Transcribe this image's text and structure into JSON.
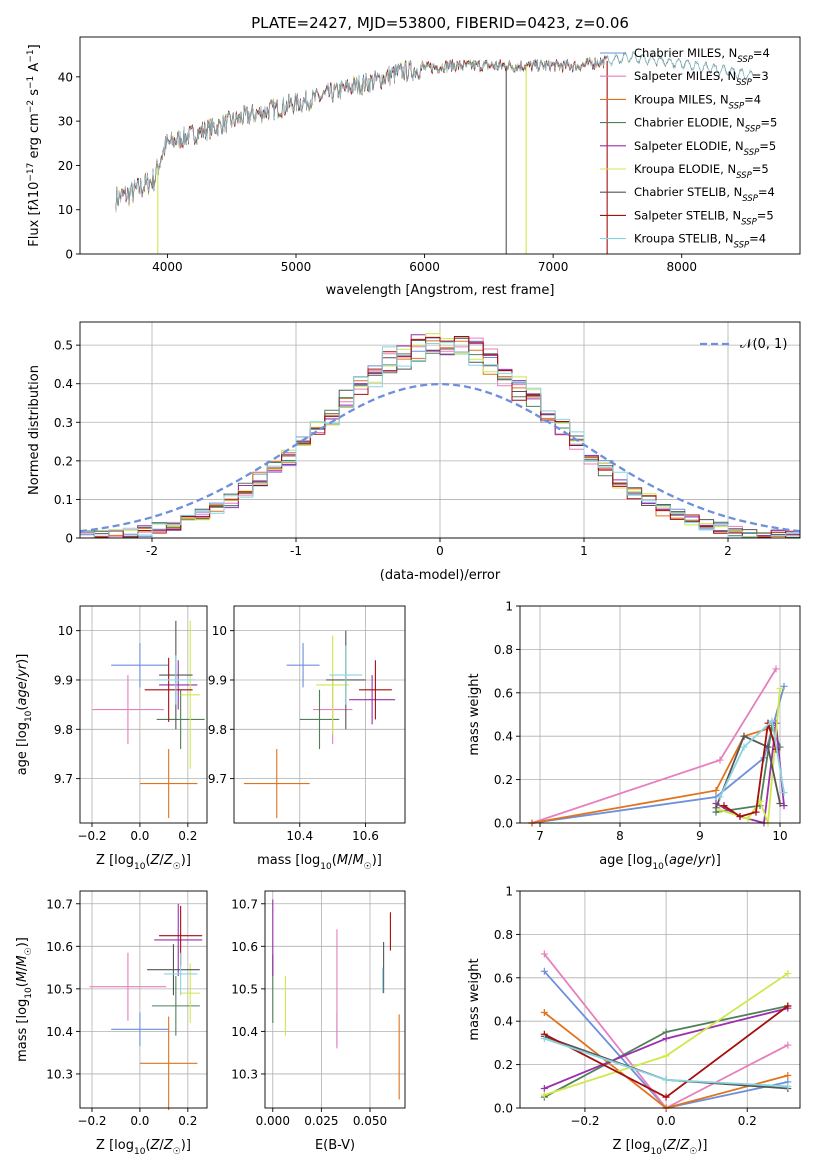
{
  "figure": {
    "title": "PLATE=2427, MJD=53800, FIBERID=0423, z=0.06"
  },
  "chart_data": [
    {
      "id": "spectrum",
      "type": "line",
      "xlabel": "wavelength [Angstrom, rest frame]",
      "ylabel_html": "Flux [f<tspan font-style='italic'>λ</tspan>10<tspan baseline-shift='super' font-size='9'>−17</tspan> erg cm<tspan baseline-shift='super' font-size='9'>−2</tspan> s<tspan baseline-shift='super' font-size='9'>−1</tspan> A<tspan baseline-shift='super' font-size='9'>−1</tspan>]",
      "xlim": [
        3320,
        8920
      ],
      "ylim": [
        0,
        49
      ],
      "xticks": [
        4000,
        5000,
        6000,
        7000,
        8000
      ],
      "yticks": [
        0,
        10,
        20,
        30,
        40
      ],
      "grid": false,
      "legend": "right",
      "series": [
        {
          "name": "Chabrier MILES, N_SSP=4",
          "color": "#6d8fdc"
        },
        {
          "name": "Salpeter MILES, N_SSP=3",
          "color": "#e77fbd"
        },
        {
          "name": "Kroupa MILES, N_SSP=4",
          "color": "#e0731c"
        },
        {
          "name": "Chabrier ELODIE, N_SSP=5",
          "color": "#527f5a"
        },
        {
          "name": "Salpeter ELODIE, N_SSP=5",
          "color": "#9b2fae"
        },
        {
          "name": "Kroupa ELODIE, N_SSP=5",
          "color": "#cfe84c"
        },
        {
          "name": "Chabrier STELIB, N_SSP=4",
          "color": "#555555"
        },
        {
          "name": "Salpeter STELIB, N_SSP=5",
          "color": "#a60d0d"
        },
        {
          "name": "Kroupa STELIB, N_SSP=4",
          "color": "#8ad4e0"
        }
      ],
      "continuum_nodes": {
        "x": [
          3600,
          3700,
          3800,
          3900,
          3950,
          4000,
          4100,
          4200,
          4300,
          4400,
          4600,
          4800,
          5000,
          5200,
          5400,
          5600,
          5800,
          6000,
          6200,
          6400,
          6600,
          6800,
          7000,
          7200,
          7400,
          7600,
          8000,
          8200,
          8400,
          8600,
          8800
        ],
        "y": [
          12.5,
          13.5,
          15,
          17,
          22,
          25,
          26,
          27,
          28,
          29,
          31,
          32.5,
          34,
          35.5,
          37.5,
          39,
          41,
          42,
          42.5,
          42.5,
          42.5,
          42.5,
          42.5,
          42.5,
          43.5,
          44.5,
          43,
          42,
          41,
          40,
          38
        ]
      },
      "spikes": [
        {
          "x": 3925,
          "color": "#cfe84c"
        },
        {
          "x": 6635,
          "color": "#555555"
        },
        {
          "x": 6790,
          "color": "#cfe84c"
        },
        {
          "x": 7420,
          "color": "#a60d0d"
        }
      ]
    },
    {
      "id": "residuals",
      "type": "histogram",
      "xlabel": "(data-model)/error",
      "ylabel": "Normed distribution",
      "xlim": [
        -2.5,
        2.5
      ],
      "ylim": [
        0,
        0.56
      ],
      "xticks": [
        -2,
        -1,
        0,
        1,
        2
      ],
      "yticks": [
        0.0,
        0.1,
        0.2,
        0.3,
        0.4,
        0.5
      ],
      "bin_width": 0.1,
      "grid": true,
      "legend": "top-right",
      "reference_curve": {
        "name": "𝒩(0, 1)",
        "color": "#6d8fdc"
      }
    },
    {
      "id": "age_vs_Z",
      "type": "errorbar",
      "xlabel": "Z [log10(Z/Z☉)]",
      "ylabel": "age  [log10(age/yr)]",
      "xlim": [
        -0.25,
        0.28
      ],
      "ylim": [
        9.61,
        10.05
      ],
      "xticks": [
        -0.2,
        0.0,
        0.2
      ],
      "yticks": [
        9.7,
        9.8,
        9.9,
        10.0
      ],
      "grid": true,
      "points": [
        {
          "x": 0.0,
          "xerr": 0.12,
          "y": 9.93,
          "yerr": 0.045,
          "color": "#6d8fdc"
        },
        {
          "x": -0.05,
          "xerr": 0.15,
          "y": 9.84,
          "yerr": 0.07,
          "color": "#e77fbd"
        },
        {
          "x": 0.12,
          "xerr": 0.12,
          "y": 9.69,
          "yerr": 0.07,
          "color": "#e0731c"
        },
        {
          "x": 0.17,
          "xerr": 0.1,
          "y": 9.82,
          "yerr": 0.06,
          "color": "#527f5a"
        },
        {
          "x": 0.16,
          "xerr": 0.08,
          "y": 9.89,
          "yerr": 0.05,
          "color": "#9b2fae"
        },
        {
          "x": 0.21,
          "xerr": 0.04,
          "y": 9.87,
          "yerr": 0.15,
          "color": "#cfe84c"
        },
        {
          "x": 0.15,
          "xerr": 0.07,
          "y": 9.91,
          "yerr": 0.11,
          "color": "#555555"
        },
        {
          "x": 0.12,
          "xerr": 0.1,
          "y": 9.88,
          "yerr": 0.065,
          "color": "#a60d0d"
        },
        {
          "x": 0.15,
          "xerr": 0.08,
          "y": 9.9,
          "yerr": 0.05,
          "color": "#8ad4e0"
        }
      ]
    },
    {
      "id": "age_vs_mass",
      "type": "errorbar",
      "xlabel": "mass [log10(M/M☉)]",
      "ylabel": "",
      "xlim": [
        10.2,
        10.72
      ],
      "ylim": [
        9.61,
        10.05
      ],
      "xticks": [
        10.4,
        10.6
      ],
      "yticks": [
        9.7,
        9.8,
        9.9,
        10.0
      ],
      "grid": true,
      "points": [
        {
          "x": 10.41,
          "xerr": 0.05,
          "y": 9.93,
          "yerr": 0.045,
          "color": "#6d8fdc"
        },
        {
          "x": 10.5,
          "xerr": 0.06,
          "y": 9.84,
          "yerr": 0.07,
          "color": "#e77fbd"
        },
        {
          "x": 10.33,
          "xerr": 0.1,
          "y": 9.69,
          "yerr": 0.07,
          "color": "#e0731c"
        },
        {
          "x": 10.46,
          "xerr": 0.06,
          "y": 9.82,
          "yerr": 0.06,
          "color": "#527f5a"
        },
        {
          "x": 10.62,
          "xerr": 0.07,
          "y": 9.86,
          "yerr": 0.05,
          "color": "#9b2fae"
        },
        {
          "x": 10.5,
          "xerr": 0.05,
          "y": 9.89,
          "yerr": 0.1,
          "color": "#cfe84c"
        },
        {
          "x": 10.54,
          "xerr": 0.06,
          "y": 9.9,
          "yerr": 0.1,
          "color": "#555555"
        },
        {
          "x": 10.63,
          "xerr": 0.05,
          "y": 9.88,
          "yerr": 0.06,
          "color": "#a60d0d"
        },
        {
          "x": 10.54,
          "xerr": 0.05,
          "y": 9.91,
          "yerr": 0.06,
          "color": "#8ad4e0"
        }
      ]
    },
    {
      "id": "weight_vs_age",
      "type": "line",
      "xlabel": "age  [log10(age/yr)]",
      "ylabel": "mass weight",
      "xlim": [
        6.75,
        10.25
      ],
      "ylim": [
        0,
        1
      ],
      "xticks": [
        7,
        8,
        9,
        10
      ],
      "yticks": [
        0.0,
        0.2,
        0.4,
        0.6,
        0.8,
        1.0
      ],
      "grid": true,
      "series": [
        {
          "color": "#6d8fdc",
          "x": [
            6.9,
            9.2,
            9.8,
            10.05
          ],
          "y": [
            0.0,
            0.12,
            0.3,
            0.63
          ]
        },
        {
          "color": "#e77fbd",
          "x": [
            6.9,
            9.25,
            9.95
          ],
          "y": [
            0.0,
            0.29,
            0.71
          ]
        },
        {
          "color": "#e0731c",
          "x": [
            6.9,
            9.2,
            9.55,
            9.9
          ],
          "y": [
            0.0,
            0.15,
            0.4,
            0.44
          ]
        },
        {
          "color": "#527f5a",
          "x": [
            9.2,
            9.75,
            9.9,
            10.0
          ],
          "y": [
            0.05,
            0.08,
            0.45,
            0.35
          ]
        },
        {
          "color": "#9b2fae",
          "x": [
            9.2,
            9.5,
            9.8,
            9.95,
            10.05
          ],
          "y": [
            0.09,
            0.03,
            0.0,
            0.46,
            0.08
          ]
        },
        {
          "color": "#cfe84c",
          "x": [
            9.25,
            9.6,
            9.75,
            9.85,
            10.0
          ],
          "y": [
            0.06,
            0.02,
            0.1,
            0.0,
            0.62
          ]
        },
        {
          "color": "#555555",
          "x": [
            9.2,
            9.55,
            9.85,
            10.0
          ],
          "y": [
            0.07,
            0.4,
            0.35,
            0.09
          ]
        },
        {
          "color": "#a60d0d",
          "x": [
            9.3,
            9.5,
            9.7,
            9.85,
            9.95
          ],
          "y": [
            0.08,
            0.03,
            0.05,
            0.46,
            0.34
          ]
        },
        {
          "color": "#8ad4e0",
          "x": [
            9.25,
            9.55,
            9.9,
            10.05
          ],
          "y": [
            0.12,
            0.35,
            0.47,
            0.14
          ]
        }
      ]
    },
    {
      "id": "mass_vs_Z",
      "type": "errorbar",
      "xlabel": "Z [log10(Z/Z☉)]",
      "ylabel": "mass [log10(M/M☉)]",
      "xlim": [
        -0.25,
        0.28
      ],
      "ylim": [
        10.22,
        10.73
      ],
      "xticks": [
        -0.2,
        0.0,
        0.2
      ],
      "yticks": [
        10.3,
        10.4,
        10.5,
        10.6,
        10.7
      ],
      "grid": true,
      "points": [
        {
          "x": 0.0,
          "xerr": 0.12,
          "y": 10.405,
          "yerr": 0.04,
          "color": "#6d8fdc"
        },
        {
          "x": -0.05,
          "xerr": 0.16,
          "y": 10.505,
          "yerr": 0.08,
          "color": "#e77fbd"
        },
        {
          "x": 0.12,
          "xerr": 0.12,
          "y": 10.325,
          "yerr": 0.11,
          "color": "#e0731c"
        },
        {
          "x": 0.15,
          "xerr": 0.1,
          "y": 10.46,
          "yerr": 0.07,
          "color": "#527f5a"
        },
        {
          "x": 0.16,
          "xerr": 0.1,
          "y": 10.615,
          "yerr": 0.085,
          "color": "#9b2fae"
        },
        {
          "x": 0.21,
          "xerr": 0.04,
          "y": 10.49,
          "yerr": 0.07,
          "color": "#cfe84c"
        },
        {
          "x": 0.14,
          "xerr": 0.11,
          "y": 10.545,
          "yerr": 0.06,
          "color": "#555555"
        },
        {
          "x": 0.17,
          "xerr": 0.09,
          "y": 10.625,
          "yerr": 0.07,
          "color": "#a60d0d"
        },
        {
          "x": 0.17,
          "xerr": 0.07,
          "y": 10.535,
          "yerr": 0.05,
          "color": "#8ad4e0"
        }
      ]
    },
    {
      "id": "mass_vs_ebv",
      "type": "errorbar",
      "xlabel": "E(B-V)",
      "ylabel": "",
      "xlim": [
        -0.004,
        0.068
      ],
      "ylim": [
        10.22,
        10.73
      ],
      "xticks": [
        0.0,
        0.025,
        0.05
      ],
      "xticklabels": [
        "0.000",
        "0.025",
        "0.050"
      ],
      "yticks": [
        10.3,
        10.4,
        10.5,
        10.6,
        10.7
      ],
      "grid": true,
      "points": [
        {
          "x": 0.033,
          "xerr": 0,
          "y": 10.405,
          "yerr": 0.04,
          "color": "#6d8fdc"
        },
        {
          "x": 0.033,
          "xerr": 0,
          "y": 10.5,
          "yerr": 0.14,
          "color": "#e77fbd"
        },
        {
          "x": 0.065,
          "xerr": 0,
          "y": 10.34,
          "yerr": 0.1,
          "color": "#e0731c"
        },
        {
          "x": 0.0,
          "xerr": 0,
          "y": 10.5,
          "yerr": 0.08,
          "color": "#527f5a"
        },
        {
          "x": 0.0,
          "xerr": 0,
          "y": 10.62,
          "yerr": 0.09,
          "color": "#9b2fae"
        },
        {
          "x": 0.0065,
          "xerr": 0,
          "y": 10.46,
          "yerr": 0.07,
          "color": "#cfe84c"
        },
        {
          "x": 0.057,
          "xerr": 0,
          "y": 10.55,
          "yerr": 0.06,
          "color": "#555555"
        },
        {
          "x": 0.0605,
          "xerr": 0,
          "y": 10.635,
          "yerr": 0.045,
          "color": "#a60d0d"
        },
        {
          "x": 0.0565,
          "xerr": 0,
          "y": 10.52,
          "yerr": 0.03,
          "color": "#8ad4e0"
        }
      ]
    },
    {
      "id": "weight_vs_Z",
      "type": "line",
      "xlabel": "Z [log10(Z/Z☉)]",
      "ylabel": "mass weight",
      "xlim": [
        -0.36,
        0.33
      ],
      "ylim": [
        0,
        1
      ],
      "xticks": [
        -0.2,
        0.0,
        0.2
      ],
      "yticks": [
        0.0,
        0.2,
        0.4,
        0.6,
        0.8,
        1.0
      ],
      "grid": true,
      "series": [
        {
          "color": "#6d8fdc",
          "x": [
            -0.3,
            0.0,
            0.3
          ],
          "y": [
            0.63,
            0.0,
            0.12
          ]
        },
        {
          "color": "#e77fbd",
          "x": [
            -0.3,
            0.0,
            0.3
          ],
          "y": [
            0.71,
            0.0,
            0.29
          ]
        },
        {
          "color": "#e0731c",
          "x": [
            -0.3,
            0.0,
            0.3
          ],
          "y": [
            0.44,
            0.0,
            0.15
          ]
        },
        {
          "color": "#527f5a",
          "x": [
            -0.3,
            0.0,
            0.3
          ],
          "y": [
            0.05,
            0.35,
            0.47
          ]
        },
        {
          "color": "#9b2fae",
          "x": [
            -0.3,
            0.0,
            0.3
          ],
          "y": [
            0.09,
            0.32,
            0.46
          ]
        },
        {
          "color": "#cfe84c",
          "x": [
            -0.3,
            0.0,
            0.3
          ],
          "y": [
            0.06,
            0.24,
            0.62
          ]
        },
        {
          "color": "#555555",
          "x": [
            -0.3,
            0.0,
            0.3
          ],
          "y": [
            0.33,
            0.13,
            0.09
          ]
        },
        {
          "color": "#a60d0d",
          "x": [
            -0.3,
            0.0,
            0.3
          ],
          "y": [
            0.34,
            0.05,
            0.47
          ]
        },
        {
          "color": "#8ad4e0",
          "x": [
            -0.3,
            0.0,
            0.3
          ],
          "y": [
            0.32,
            0.13,
            0.1
          ]
        }
      ]
    }
  ]
}
